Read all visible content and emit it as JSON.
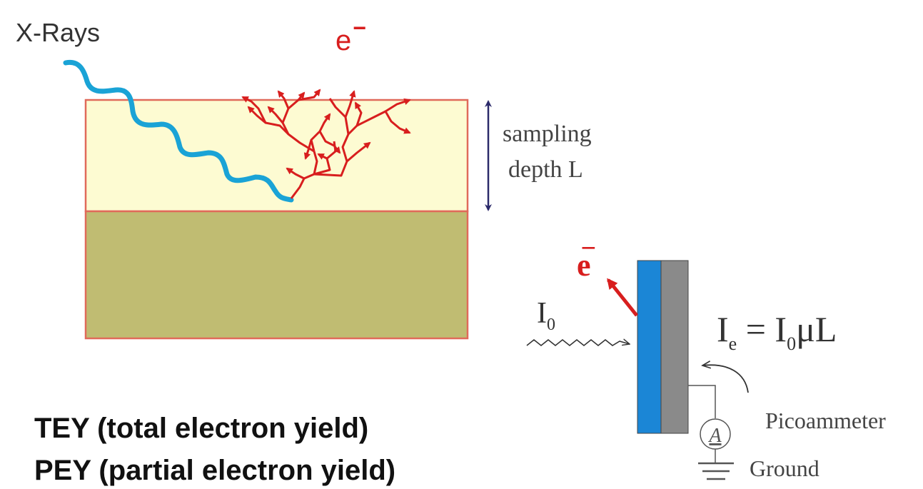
{
  "labels": {
    "xrays": "X-Rays",
    "electron": "e",
    "electron_sup": "−",
    "sampling_line1": "sampling",
    "sampling_line2": "depth L",
    "electron2": "e",
    "electron2_sup": "−",
    "i0_main": "I",
    "i0_sub": "0",
    "eq_i": "I",
    "eq_i_sub": "e",
    "eq_rhs_i": " = I",
    "eq_rhs_sub": "0",
    "eq_rhs_tail": "μL",
    "ammeter_symbol": "A",
    "picoammeter": "Picoammeter",
    "ground": "Ground"
  },
  "captions": {
    "tey": "TEY (total electron yield)",
    "pey": "PEY (partial electron yield)"
  },
  "colors": {
    "surface_layer": "#fdfbd2",
    "substrate": "#c0bc72",
    "layer_border": "#e06a5a",
    "xray_wave": "#1aa3d6",
    "electron_red": "#d81e1e",
    "depth_arrow": "#2b2a6a",
    "detector_blue": "#1b86d6",
    "detector_gray": "#8a8a8a"
  }
}
